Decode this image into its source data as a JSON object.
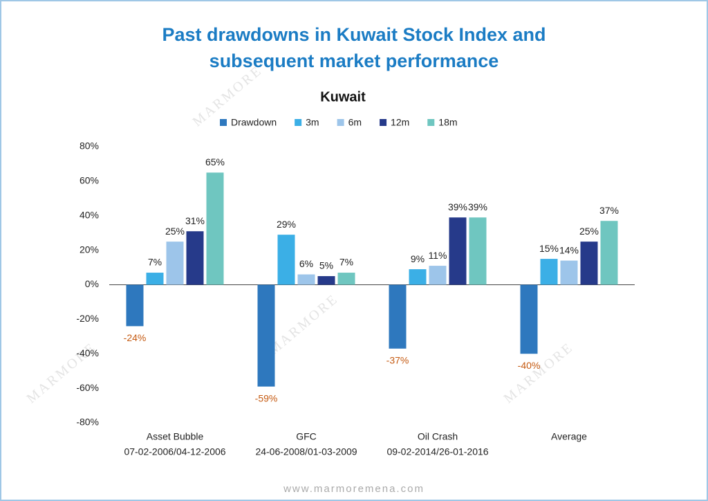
{
  "chart_data": {
    "type": "bar",
    "title": [
      "Past drawdowns in Kuwait Stock Index and",
      "subsequent market performance"
    ],
    "subtitle": "Kuwait",
    "categories": [
      [
        "Asset Bubble",
        "07-02-2006/04-12-2006"
      ],
      [
        "GFC",
        "24-06-2008/01-03-2009"
      ],
      [
        "Oil Crash",
        "09-02-2014/26-01-2016"
      ],
      [
        "Average"
      ]
    ],
    "series": [
      {
        "name": "Drawdown",
        "color": "#2e78be",
        "values": [
          -24,
          -59,
          -37,
          -40
        ],
        "value_labels": [
          "-24%",
          "-59%",
          "-37%",
          "-40%"
        ]
      },
      {
        "name": "3m",
        "color": "#3bafe6",
        "values": [
          7,
          29,
          9,
          15
        ],
        "value_labels": [
          "7%",
          "29%",
          "9%",
          "15%"
        ]
      },
      {
        "name": "6m",
        "color": "#9dc5ea",
        "values": [
          25,
          6,
          11,
          14
        ],
        "value_labels": [
          "25%",
          "6%",
          "11%",
          "14%"
        ]
      },
      {
        "name": "12m",
        "color": "#263a8a",
        "values": [
          31,
          5,
          39,
          25
        ],
        "value_labels": [
          "31%",
          "5%",
          "39%",
          "25%"
        ]
      },
      {
        "name": "18m",
        "color": "#6fc6c0",
        "values": [
          65,
          7,
          39,
          37
        ],
        "value_labels": [
          "65%",
          "7%",
          "39%",
          "37%"
        ]
      }
    ],
    "negative_label_color": "#c55a11",
    "ylim": [
      -80,
      80
    ],
    "yticks": [
      {
        "value": -80,
        "label": "-80%"
      },
      {
        "value": -60,
        "label": "-60%"
      },
      {
        "value": -40,
        "label": "-40%"
      },
      {
        "value": -20,
        "label": "-20%"
      },
      {
        "value": 0,
        "label": "0%"
      },
      {
        "value": 20,
        "label": "20%"
      },
      {
        "value": 40,
        "label": "40%"
      },
      {
        "value": 60,
        "label": "60%"
      },
      {
        "value": 80,
        "label": "80%"
      }
    ],
    "legend": "top",
    "grid": false,
    "watermark": "MARMORE",
    "footer": "www.marmoremena.com"
  }
}
